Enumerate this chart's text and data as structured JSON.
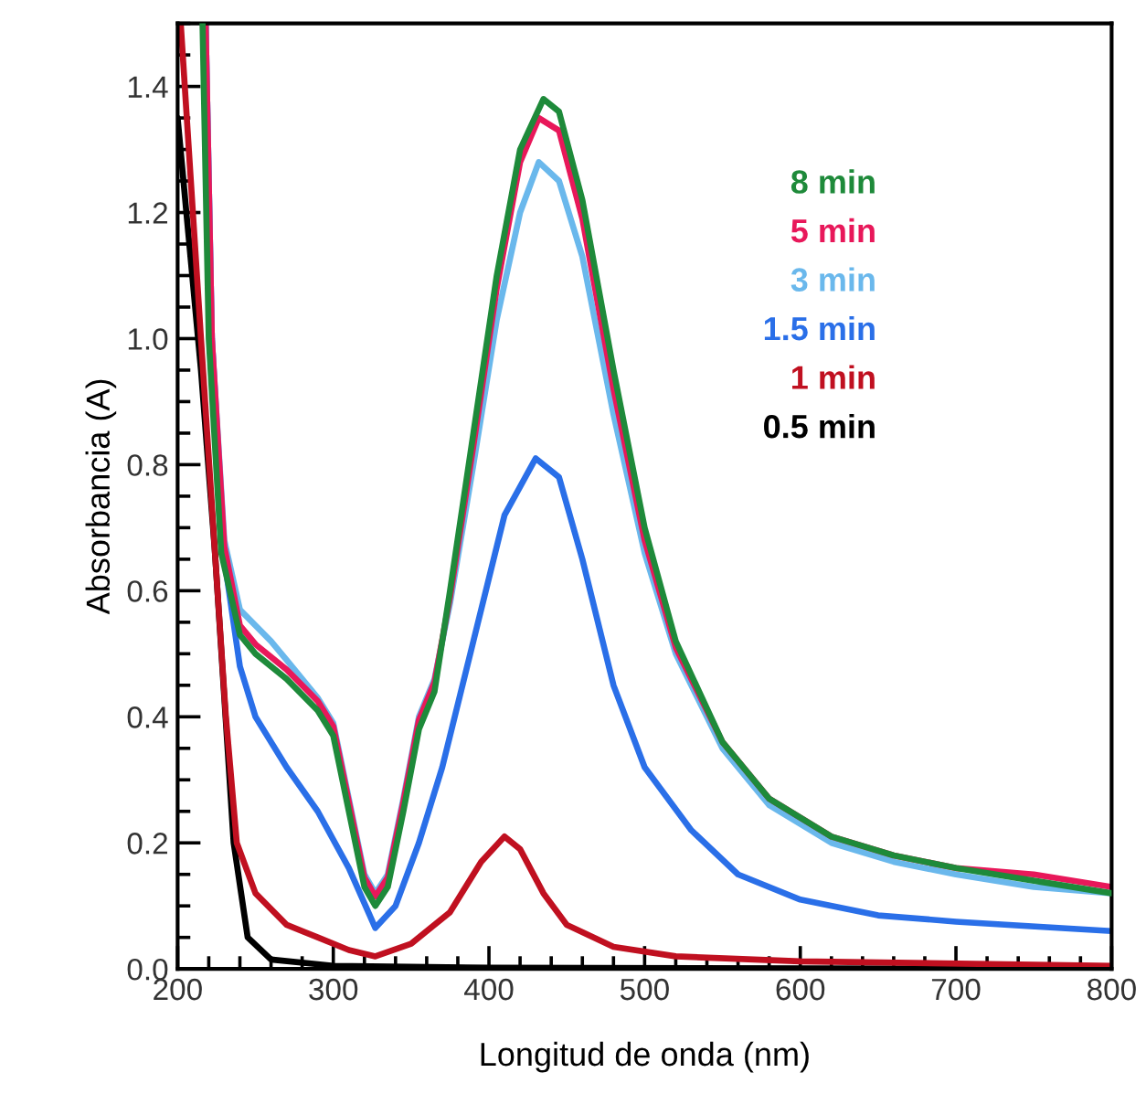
{
  "chart_data": {
    "type": "line",
    "xlabel": "Longitud de onda (nm)",
    "ylabel": "Absorbancia (A)",
    "xlim": [
      200,
      800
    ],
    "ylim": [
      0,
      1.5
    ],
    "xticks": [
      200,
      300,
      400,
      500,
      600,
      700,
      800
    ],
    "yticks": [
      {
        "value": 0,
        "label": "0.0"
      },
      0.2,
      0.4,
      0.6,
      0.8,
      {
        "value": 1.0,
        "label": "1.0"
      },
      1.2,
      1.4
    ],
    "grid": false,
    "legend": "right",
    "marker": "none",
    "line_style": "solid",
    "series": [
      {
        "name": "8 min",
        "color": "#1e8a3a",
        "x": [
          216,
          220,
          228,
          240,
          250,
          270,
          290,
          300,
          310,
          320,
          327,
          335,
          345,
          355,
          365,
          375,
          390,
          405,
          420,
          435,
          445,
          460,
          480,
          500,
          520,
          550,
          580,
          620,
          660,
          700,
          750,
          800
        ],
        "values": [
          1.5,
          1.0,
          0.66,
          0.53,
          0.5,
          0.46,
          0.41,
          0.37,
          0.25,
          0.13,
          0.1,
          0.13,
          0.25,
          0.38,
          0.44,
          0.6,
          0.85,
          1.1,
          1.3,
          1.38,
          1.36,
          1.22,
          0.95,
          0.7,
          0.52,
          0.36,
          0.27,
          0.21,
          0.18,
          0.16,
          0.14,
          0.12
        ]
      },
      {
        "name": "5 min",
        "color": "#e8185a",
        "x": [
          218,
          222,
          230,
          240,
          250,
          270,
          290,
          300,
          310,
          320,
          327,
          335,
          345,
          355,
          365,
          375,
          390,
          405,
          420,
          432,
          445,
          460,
          480,
          500,
          520,
          550,
          580,
          620,
          660,
          700,
          750,
          800
        ],
        "values": [
          1.5,
          1.0,
          0.67,
          0.545,
          0.515,
          0.475,
          0.425,
          0.385,
          0.265,
          0.145,
          0.115,
          0.145,
          0.265,
          0.395,
          0.455,
          0.59,
          0.83,
          1.08,
          1.28,
          1.35,
          1.33,
          1.19,
          0.92,
          0.68,
          0.51,
          0.36,
          0.27,
          0.21,
          0.18,
          0.16,
          0.15,
          0.13
        ]
      },
      {
        "name": "3 min",
        "color": "#6ab8ec",
        "x": [
          218,
          222,
          230,
          240,
          260,
          270,
          290,
          300,
          310,
          320,
          327,
          335,
          345,
          355,
          365,
          375,
          390,
          405,
          420,
          432,
          445,
          460,
          480,
          500,
          520,
          550,
          580,
          620,
          660,
          700,
          750,
          800
        ],
        "values": [
          1.5,
          1.0,
          0.68,
          0.57,
          0.52,
          0.49,
          0.43,
          0.39,
          0.27,
          0.15,
          0.12,
          0.15,
          0.27,
          0.4,
          0.46,
          0.58,
          0.8,
          1.03,
          1.2,
          1.28,
          1.25,
          1.13,
          0.88,
          0.66,
          0.5,
          0.35,
          0.26,
          0.2,
          0.17,
          0.15,
          0.13,
          0.12
        ]
      },
      {
        "name": "1.5 min",
        "color": "#2a6fe8",
        "x": [
          218,
          222,
          230,
          240,
          250,
          270,
          290,
          310,
          327,
          340,
          355,
          370,
          390,
          410,
          430,
          445,
          460,
          480,
          500,
          530,
          560,
          600,
          650,
          700,
          800
        ],
        "values": [
          1.5,
          1.0,
          0.65,
          0.48,
          0.4,
          0.32,
          0.25,
          0.16,
          0.065,
          0.1,
          0.2,
          0.32,
          0.52,
          0.72,
          0.81,
          0.78,
          0.65,
          0.45,
          0.32,
          0.22,
          0.15,
          0.11,
          0.085,
          0.075,
          0.06
        ]
      },
      {
        "name": "1 min",
        "color": "#c01020",
        "x": [
          202,
          215,
          224,
          231,
          238,
          250,
          270,
          290,
          310,
          327,
          350,
          375,
          395,
          410,
          420,
          435,
          450,
          480,
          520,
          600,
          800
        ],
        "values": [
          1.5,
          1.0,
          0.66,
          0.4,
          0.2,
          0.12,
          0.07,
          0.05,
          0.03,
          0.02,
          0.04,
          0.09,
          0.17,
          0.21,
          0.19,
          0.12,
          0.07,
          0.035,
          0.02,
          0.012,
          0.005
        ]
      },
      {
        "name": "0.5 min",
        "color": "#000000",
        "x": [
          200,
          215,
          224,
          236,
          245,
          260,
          300,
          400,
          800
        ],
        "values": [
          1.35,
          0.95,
          0.66,
          0.2,
          0.05,
          0.015,
          0.005,
          0.002,
          0.0
        ]
      }
    ]
  }
}
